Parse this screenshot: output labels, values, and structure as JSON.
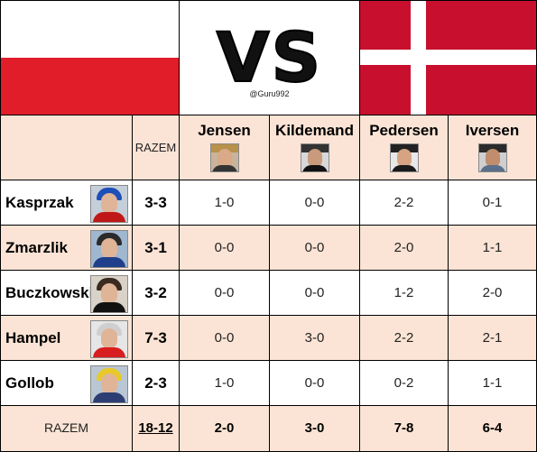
{
  "header": {
    "vs_text": "VS",
    "handle": "@Guru992",
    "razem_label": "RAZEM",
    "flags": {
      "left": "poland-flag",
      "right": "denmark-flag"
    },
    "colors": {
      "poland_red": "#e11d2a",
      "denmark_red": "#c8102e",
      "row_tint": "#fbe4d5"
    }
  },
  "opponents": [
    {
      "name": "Jensen"
    },
    {
      "name": "Kildemand"
    },
    {
      "name": "Pedersen"
    },
    {
      "name": "Iversen"
    }
  ],
  "riders": [
    {
      "name": "Kasprzak",
      "total": "3-3",
      "scores": [
        "1-0",
        "0-0",
        "2-2",
        "0-1"
      ]
    },
    {
      "name": "Zmarzlik",
      "total": "3-1",
      "scores": [
        "0-0",
        "0-0",
        "2-0",
        "1-1"
      ]
    },
    {
      "name": "Buczkowski",
      "total": "3-2",
      "scores": [
        "0-0",
        "0-0",
        "1-2",
        "2-0"
      ]
    },
    {
      "name": "Hampel",
      "total": "7-3",
      "scores": [
        "0-0",
        "3-0",
        "2-2",
        "2-1"
      ]
    },
    {
      "name": "Gollob",
      "total": "2-3",
      "scores": [
        "1-0",
        "0-0",
        "0-2",
        "1-1"
      ]
    }
  ],
  "footer": {
    "label": "RAZEM",
    "grand_total": "18-12",
    "opponent_totals": [
      "2-0",
      "3-0",
      "7-8",
      "6-4"
    ]
  }
}
